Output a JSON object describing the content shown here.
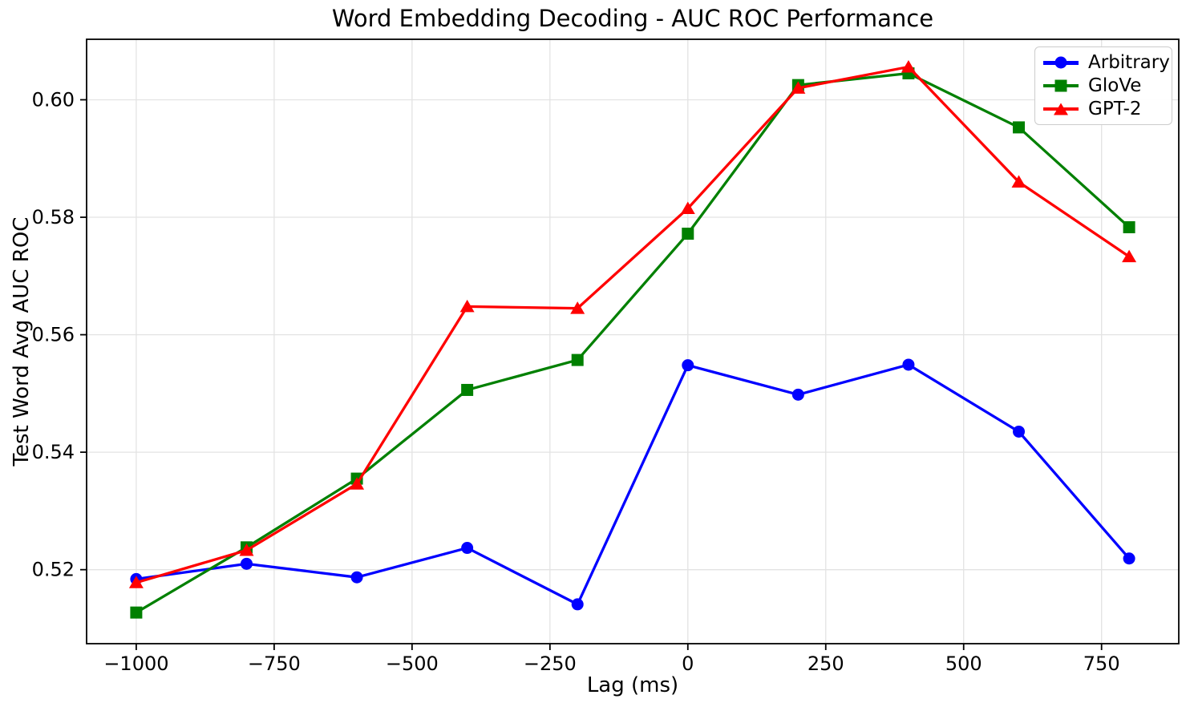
{
  "chart_data": {
    "type": "line",
    "title": "Word Embedding Decoding - AUC ROC Performance",
    "xlabel": "Lag (ms)",
    "ylabel": "Test Word Avg AUC ROC",
    "x": [
      -1000,
      -800,
      -600,
      -400,
      -200,
      0,
      200,
      400,
      600,
      800
    ],
    "series": [
      {
        "name": "Arbitrary",
        "color": "#0000ff",
        "marker": "circle",
        "values": [
          0.5184,
          0.521,
          0.5187,
          0.5237,
          0.5141,
          0.5548,
          0.5498,
          0.5549,
          0.5435,
          0.5219
        ]
      },
      {
        "name": "GloVe",
        "color": "#008000",
        "marker": "square",
        "values": [
          0.5127,
          0.5238,
          0.5355,
          0.5506,
          0.5557,
          0.5772,
          0.6025,
          0.6045,
          0.5953,
          0.5783
        ]
      },
      {
        "name": "GPT-2",
        "color": "#ff0000",
        "marker": "triangle",
        "values": [
          0.5178,
          0.5233,
          0.5346,
          0.5648,
          0.5645,
          0.5815,
          0.602,
          0.6056,
          0.586,
          0.5733
        ]
      }
    ],
    "xticks": [
      -1000,
      -750,
      -500,
      -250,
      0,
      250,
      500,
      750
    ],
    "xtick_labels": [
      "−1000",
      "−750",
      "−500",
      "−250",
      "0",
      "250",
      "500",
      "750"
    ],
    "yticks": [
      0.52,
      0.54,
      0.56,
      0.58,
      0.6
    ],
    "ytick_labels": [
      "0.52",
      "0.54",
      "0.56",
      "0.58",
      "0.60"
    ],
    "xlim": [
      -1090,
      890
    ],
    "ylim": [
      0.5074,
      0.6103
    ],
    "grid": true,
    "grid_color": "#e3e3e3",
    "axis_color": "#000000",
    "legend_position": "upper right"
  }
}
